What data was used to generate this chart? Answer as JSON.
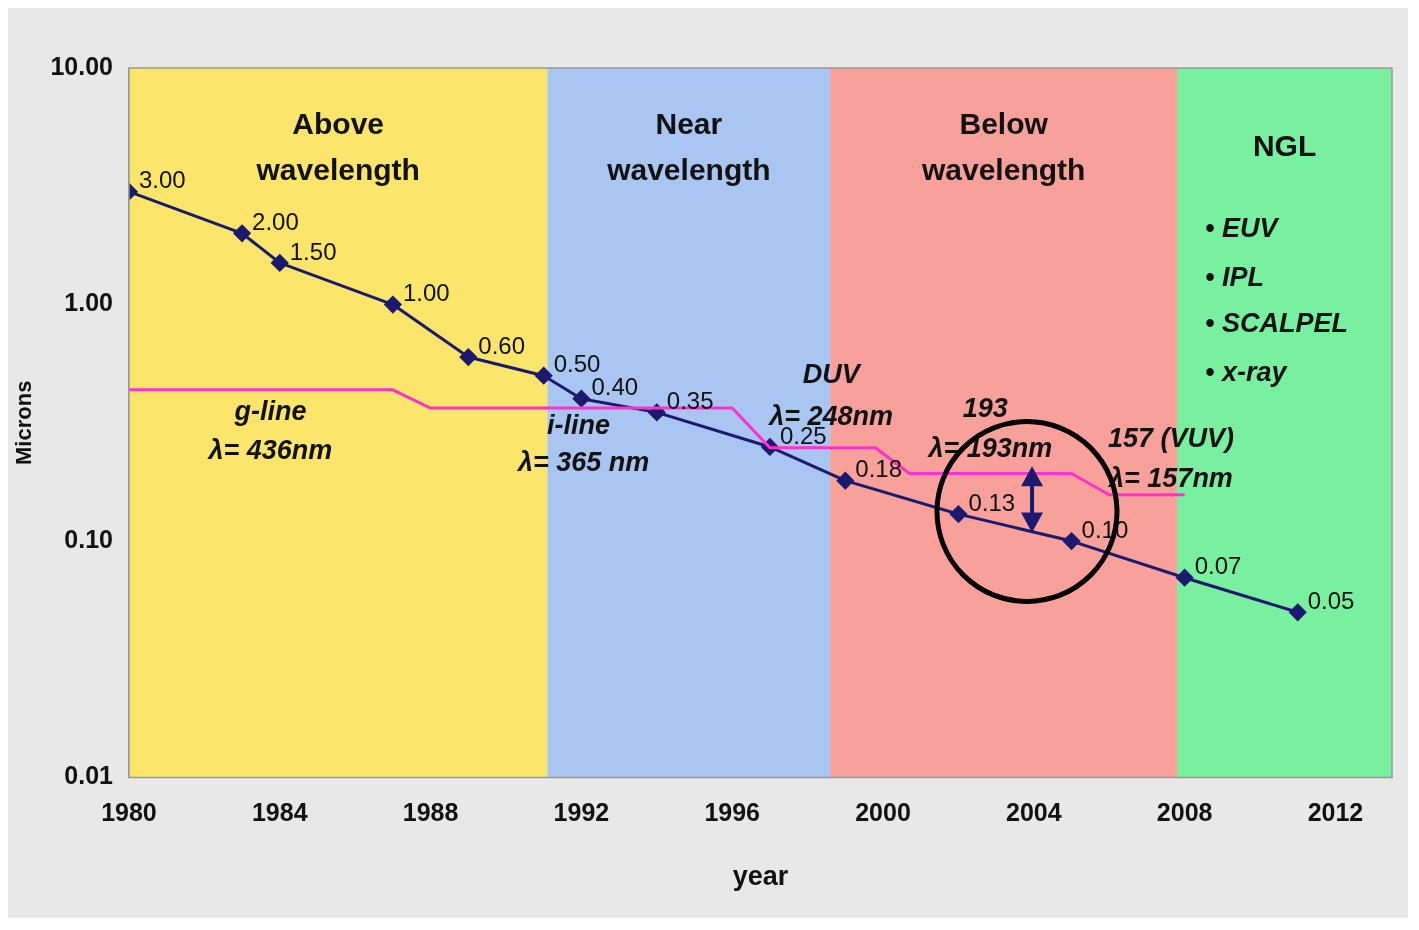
{
  "chart_data": {
    "type": "line",
    "xlabel": "year",
    "ylabel": "Microns",
    "log": "y",
    "legend": false,
    "xlim": [
      1980,
      2013.5
    ],
    "xticks": [
      1980,
      1984,
      1988,
      1992,
      1996,
      2000,
      2004,
      2008,
      2012
    ],
    "ylim": [
      0.01,
      10
    ],
    "yticks": [
      {
        "value": 0.01,
        "label": "0.01"
      },
      {
        "value": 0.1,
        "label": "0.10"
      },
      {
        "value": 1,
        "label": "1.00"
      },
      {
        "value": 10,
        "label": "10.00"
      }
    ],
    "series": [
      {
        "color": "#ff33cc",
        "marker": "none",
        "x": [
          1980,
          1987,
          1988,
          1996,
          1997,
          1999.8,
          2000.7,
          2005,
          2006,
          2008
        ],
        "values": [
          0.436,
          0.436,
          0.365,
          0.365,
          0.248,
          0.248,
          0.193,
          0.193,
          0.157,
          0.157
        ]
      },
      {
        "color": "#1c1a6e",
        "marker": "diamond",
        "x": [
          1980,
          1983,
          1984,
          1987,
          1989,
          1991,
          1992,
          1994,
          1997,
          1999,
          2002,
          2005,
          2008,
          2011
        ],
        "values": [
          3,
          2,
          1.5,
          1,
          0.6,
          0.5,
          0.4,
          0.35,
          0.25,
          0.18,
          0.13,
          0.1,
          0.07,
          0.05
        ],
        "value_labels": [
          "3.00",
          "2.00",
          "1.50",
          "1.00",
          "0.60",
          "0.50",
          "0.40",
          "0.35",
          "0.25",
          "0.18",
          "0.13",
          "0.10",
          "0.07",
          "0.05"
        ]
      }
    ],
    "bands": [
      {
        "axis": "x",
        "from": 1980,
        "to": 1991.1,
        "label": "Above wavelength",
        "color": "#fbe56a"
      },
      {
        "axis": "x",
        "from": 1991.1,
        "to": 1998.6,
        "label": "Near wavelength",
        "color": "#a9c6f3"
      },
      {
        "axis": "x",
        "from": 1998.6,
        "to": 2007.8,
        "label": "Below wavelength",
        "color": "#f8a09a"
      },
      {
        "axis": "x",
        "from": 2007.8,
        "to": 2013.5,
        "label": "NGL",
        "color": "#78f0a0"
      }
    ],
    "annotations": [
      "g-line",
      "λ= 436nm",
      "i-line",
      "λ= 365 nm",
      "DUV",
      "λ= 248nm",
      "193",
      "λ= 193nm",
      "157 (VUV)",
      "λ= 157nm",
      "• EUV",
      "• IPL",
      "• SCALPEL",
      "• x-ray"
    ]
  }
}
